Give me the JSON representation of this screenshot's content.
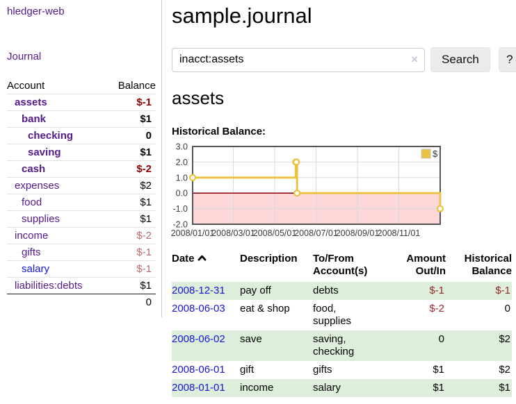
{
  "sidebar": {
    "app_title": "hledger-web",
    "journal_link": "Journal",
    "table": {
      "account_header": "Account",
      "balance_header": "Balance",
      "rows": [
        {
          "name": "assets",
          "balance": "$-1",
          "depth": 1,
          "bold": true,
          "negative": "strong"
        },
        {
          "name": "bank",
          "balance": "$1",
          "depth": 2,
          "bold": true
        },
        {
          "name": "checking",
          "balance": "0",
          "depth": 3,
          "bold": true
        },
        {
          "name": "saving",
          "balance": "$1",
          "depth": 3,
          "bold": true
        },
        {
          "name": "cash",
          "balance": "$-2",
          "depth": 2,
          "bold": true,
          "negative": "strong"
        },
        {
          "name": "expenses",
          "balance": "$2",
          "depth": 1
        },
        {
          "name": "food",
          "balance": "$1",
          "depth": 2
        },
        {
          "name": "supplies",
          "balance": "$1",
          "depth": 2
        },
        {
          "name": "income",
          "balance": "$-2",
          "depth": 1,
          "negative": "soft"
        },
        {
          "name": "gifts",
          "balance": "$-1",
          "depth": 2,
          "negative": "soft"
        },
        {
          "name": "salary",
          "balance": "$-1",
          "depth": 2,
          "negative": "soft",
          "blue": true
        },
        {
          "name": "liabilities:debts",
          "balance": "$1",
          "depth": 1
        }
      ],
      "total": "0"
    }
  },
  "header": {
    "title": "sample.journal"
  },
  "search": {
    "value": "inacct:assets",
    "clear_icon": "×",
    "button": "Search",
    "help_button": "?"
  },
  "account_page": {
    "title": "assets",
    "chart_label": "Historical Balance:"
  },
  "chart_data": {
    "type": "line",
    "step": true,
    "title": "Historical Balance:",
    "x_axis": {
      "tick_labels": [
        "2008/01/01",
        "2008/03/01",
        "2008/05/01",
        "2008/07/01",
        "2008/09/01",
        "2008/11/01"
      ],
      "tick_days": [
        0,
        60,
        121,
        182,
        243,
        304
      ],
      "range_days": [
        0,
        365
      ]
    },
    "y_axis": {
      "ticks": [
        "3.0",
        "2.0",
        "1.0",
        "0.0",
        "-1.0",
        "-2.0"
      ],
      "tick_values": [
        3,
        2,
        1,
        0,
        -1,
        -2
      ],
      "range": [
        -2,
        3
      ]
    },
    "series": [
      {
        "name": "$",
        "color": "#e9c340",
        "points": [
          {
            "date": "2008-01-01",
            "day": 0,
            "value": 1
          },
          {
            "date": "2008-06-01",
            "day": 152,
            "value": 2
          },
          {
            "date": "2008-06-02",
            "day": 153,
            "value": 2
          },
          {
            "date": "2008-06-03",
            "day": 154,
            "value": 0
          },
          {
            "date": "2008-12-31",
            "day": 365,
            "value": -1
          }
        ]
      }
    ],
    "legend": {
      "label": "$",
      "position": "top-right"
    },
    "colors": {
      "negative_region": "#fcd8d8",
      "zero_line": "#8b0000",
      "grid": "#d9d9d9",
      "border": "#545454",
      "tick_text": "#3b3b3b"
    }
  },
  "register_table": {
    "columns": [
      "Date",
      "Description",
      "To/From Account(s)",
      "Amount Out/In",
      "Historical Balance"
    ],
    "rows": [
      {
        "date": "2008-12-31",
        "description": "pay off",
        "accounts": "debts",
        "amount": "$-1",
        "balance": "$-1",
        "amount_negative": true,
        "balance_negative": true
      },
      {
        "date": "2008-06-03",
        "description": "eat & shop",
        "accounts": "food, supplies",
        "amount": "$-2",
        "balance": "0",
        "amount_negative": true,
        "balance_negative": false
      },
      {
        "date": "2008-06-02",
        "description": "save",
        "accounts": "saving, checking",
        "amount": "0",
        "balance": "$2",
        "amount_negative": false,
        "balance_negative": false
      },
      {
        "date": "2008-06-01",
        "description": "gift",
        "accounts": "gifts",
        "amount": "$1",
        "balance": "$2",
        "amount_negative": false,
        "balance_negative": false
      },
      {
        "date": "2008-01-01",
        "description": "income",
        "accounts": "salary",
        "amount": "$1",
        "balance": "$1",
        "amount_negative": false,
        "balance_negative": false
      }
    ]
  }
}
